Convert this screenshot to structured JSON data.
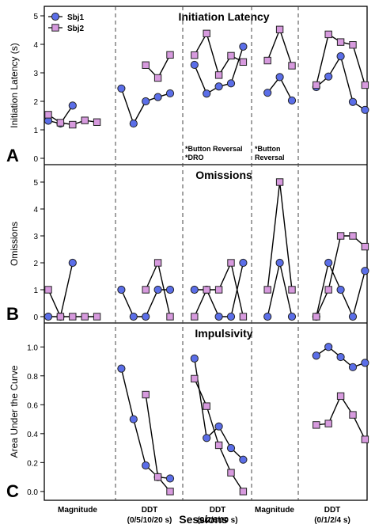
{
  "figure": {
    "xlabel": "Sessions",
    "legend": [
      {
        "name": "Sbj1",
        "marker": "circle",
        "color": "#5b6ee8"
      },
      {
        "name": "Sbj2",
        "marker": "square",
        "color": "#d79ade"
      }
    ],
    "phases": [
      {
        "label_lines": [
          "Magnitude"
        ]
      },
      {
        "label_lines": [
          "DDT",
          "(0/5/10/20 s)"
        ]
      },
      {
        "label_lines": [
          "DDT",
          "(0/2/6/10 s)"
        ]
      },
      {
        "label_lines": [
          "Magnitude"
        ]
      },
      {
        "label_lines": [
          "DDT",
          "(0/1/2/4 s)"
        ]
      }
    ]
  },
  "colors": {
    "sbj1": "#5b6ee8",
    "sbj2": "#d79ade",
    "marker_stroke": "#222222",
    "line": "#000000",
    "phase_divider": "#444444"
  },
  "chart_data": [
    {
      "type": "line",
      "panel_letter": "A",
      "title": "Initiation Latency",
      "ylabel": "Initiation Latency (s)",
      "ylim": [
        0,
        5
      ],
      "yticks": [
        "0",
        "1",
        "2",
        "3",
        "4",
        "5"
      ],
      "annotations": [
        {
          "phase": 2,
          "lines": [
            "*Button Reversal",
            "*DRO"
          ]
        },
        {
          "phase": 3,
          "lines": [
            "*Button",
            "Reversal"
          ]
        }
      ],
      "series": [
        {
          "name": "Sbj1",
          "points": [
            [
              1,
              1.32
            ],
            [
              2,
              1.22
            ],
            [
              3,
              1.85
            ],
            [
              7,
              2.45
            ],
            [
              8,
              1.22
            ],
            [
              9,
              2.0
            ],
            [
              10,
              2.15
            ],
            [
              11,
              2.28
            ],
            [
              13,
              3.28
            ],
            [
              14,
              2.27
            ],
            [
              15,
              2.52
            ],
            [
              16,
              2.63
            ],
            [
              17,
              3.92
            ],
            [
              19,
              2.3
            ],
            [
              20,
              2.85
            ],
            [
              21,
              2.03
            ],
            [
              23,
              2.5
            ],
            [
              24,
              2.87
            ],
            [
              25,
              3.58
            ],
            [
              26,
              1.98
            ],
            [
              27,
              1.7
            ]
          ]
        },
        {
          "name": "Sbj2",
          "points": [
            [
              1,
              1.53
            ],
            [
              2,
              1.25
            ],
            [
              3,
              1.18
            ],
            [
              4,
              1.33
            ],
            [
              5,
              1.27
            ],
            [
              9,
              3.27
            ],
            [
              10,
              2.82
            ],
            [
              11,
              3.63
            ],
            [
              13,
              3.62
            ],
            [
              14,
              4.38
            ],
            [
              15,
              2.92
            ],
            [
              16,
              3.6
            ],
            [
              17,
              3.38
            ],
            [
              19,
              3.43
            ],
            [
              20,
              4.52
            ],
            [
              21,
              3.25
            ],
            [
              23,
              2.57
            ],
            [
              24,
              4.35
            ],
            [
              25,
              4.08
            ],
            [
              26,
              3.98
            ],
            [
              27,
              2.57
            ]
          ]
        }
      ]
    },
    {
      "type": "line",
      "panel_letter": "B",
      "title": "Omissions",
      "ylabel": "Omissions",
      "ylim": [
        0,
        5.5
      ],
      "yticks": [
        "0",
        "1",
        "2",
        "3",
        "4",
        "5"
      ],
      "series": [
        {
          "name": "Sbj1",
          "points": [
            [
              1,
              0
            ],
            [
              2,
              0
            ],
            [
              3,
              2
            ],
            [
              7,
              1
            ],
            [
              8,
              0
            ],
            [
              9,
              0
            ],
            [
              10,
              1
            ],
            [
              11,
              1
            ],
            [
              13,
              1
            ],
            [
              14,
              1
            ],
            [
              15,
              0
            ],
            [
              16,
              0
            ],
            [
              17,
              2
            ],
            [
              19,
              0
            ],
            [
              20,
              2
            ],
            [
              21,
              0
            ],
            [
              23,
              0
            ],
            [
              24,
              2
            ],
            [
              25,
              1
            ],
            [
              26,
              0
            ],
            [
              27,
              1.7
            ]
          ]
        },
        {
          "name": "Sbj2",
          "points": [
            [
              1,
              1
            ],
            [
              2,
              0
            ],
            [
              3,
              0
            ],
            [
              4,
              0
            ],
            [
              5,
              0
            ],
            [
              9,
              1
            ],
            [
              10,
              2
            ],
            [
              11,
              0
            ],
            [
              13,
              0
            ],
            [
              14,
              1
            ],
            [
              15,
              1
            ],
            [
              16,
              2
            ],
            [
              17,
              0
            ],
            [
              19,
              1
            ],
            [
              20,
              5
            ],
            [
              21,
              1
            ],
            [
              23,
              0
            ],
            [
              24,
              1
            ],
            [
              25,
              3
            ],
            [
              26,
              3
            ],
            [
              27,
              2.6
            ]
          ]
        }
      ]
    },
    {
      "type": "line",
      "panel_letter": "C",
      "title": "Impulsivity",
      "ylabel": "Area Under the Curve",
      "ylim": [
        -0.05,
        1.1
      ],
      "yticks": [
        "0.0",
        "0.2",
        "0.4",
        "0.6",
        "0.8",
        "1.0"
      ],
      "series": [
        {
          "name": "Sbj1",
          "points": [
            [
              7,
              0.85
            ],
            [
              8,
              0.5
            ],
            [
              9,
              0.18
            ],
            [
              10,
              0.1
            ],
            [
              11,
              0.09
            ],
            [
              13,
              0.92
            ],
            [
              14,
              0.37
            ],
            [
              15,
              0.45
            ],
            [
              16,
              0.3
            ],
            [
              17,
              0.22
            ],
            [
              23,
              0.94
            ],
            [
              24,
              1.0
            ],
            [
              25,
              0.93
            ],
            [
              26,
              0.86
            ],
            [
              27,
              0.89
            ]
          ]
        },
        {
          "name": "Sbj2",
          "points": [
            [
              9,
              0.67
            ],
            [
              10,
              0.1
            ],
            [
              11,
              0.0
            ],
            [
              13,
              0.78
            ],
            [
              14,
              0.59
            ],
            [
              15,
              0.32
            ],
            [
              16,
              0.13
            ],
            [
              17,
              0.0
            ],
            [
              23,
              0.46
            ],
            [
              24,
              0.47
            ],
            [
              25,
              0.66
            ],
            [
              26,
              0.53
            ],
            [
              27,
              0.36
            ]
          ]
        }
      ]
    }
  ]
}
